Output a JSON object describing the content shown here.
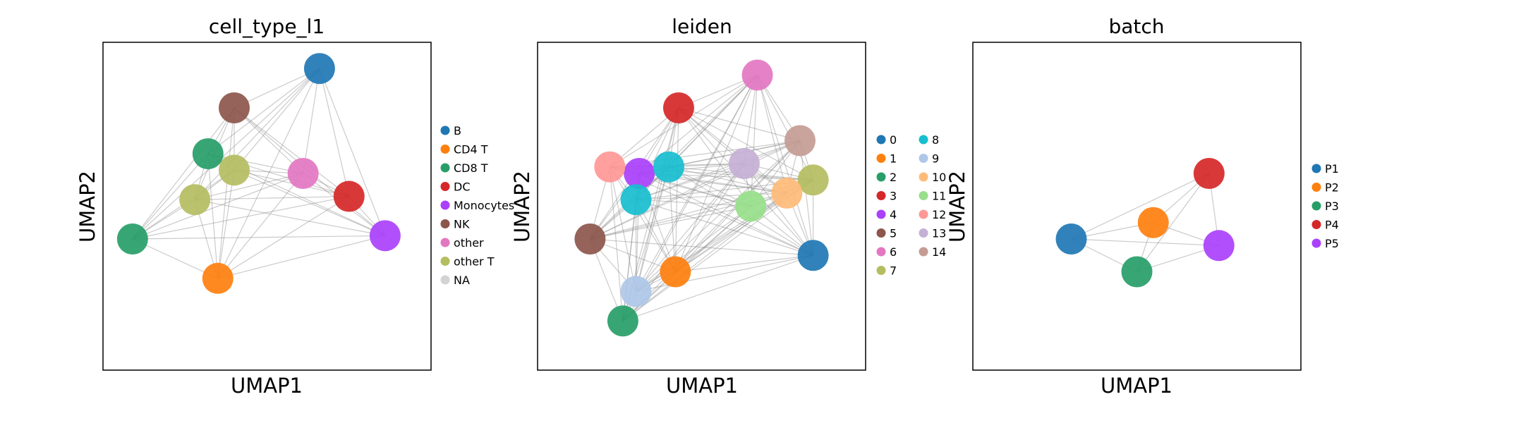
{
  "chart_data": [
    {
      "type": "scatter",
      "title": "cell_type_l1",
      "xlabel": "UMAP1",
      "ylabel": "UMAP2",
      "grid": false,
      "legend_placement": "right",
      "legend": [
        {
          "label": "B",
          "color": "#1f77b4"
        },
        {
          "label": "CD4 T",
          "color": "#ff7f0e"
        },
        {
          "label": "CD8 T",
          "color": "#279e68"
        },
        {
          "label": "DC",
          "color": "#d62728"
        },
        {
          "label": "Monocytes",
          "color": "#aa40fc"
        },
        {
          "label": "NK",
          "color": "#8c564b"
        },
        {
          "label": "other",
          "color": "#e377c2"
        },
        {
          "label": "other T",
          "color": "#b5bd61"
        },
        {
          "label": "NA",
          "color": "#d3d3d3"
        }
      ],
      "clusters": [
        {
          "x": 0.66,
          "y": 0.92,
          "category": "B"
        },
        {
          "x": 0.35,
          "y": 0.28,
          "category": "CD4 T"
        },
        {
          "x": 0.09,
          "y": 0.4,
          "category": "CD8 T"
        },
        {
          "x": 0.32,
          "y": 0.66,
          "category": "CD8 T"
        },
        {
          "x": 0.75,
          "y": 0.53,
          "category": "DC"
        },
        {
          "x": 0.86,
          "y": 0.41,
          "category": "Monocytes"
        },
        {
          "x": 0.4,
          "y": 0.8,
          "category": "NK"
        },
        {
          "x": 0.61,
          "y": 0.6,
          "category": "other"
        },
        {
          "x": 0.28,
          "y": 0.52,
          "category": "other T"
        },
        {
          "x": 0.4,
          "y": 0.61,
          "category": "other T"
        }
      ]
    },
    {
      "type": "scatter",
      "title": "leiden",
      "xlabel": "UMAP1",
      "ylabel": "UMAP2",
      "grid": false,
      "legend_placement": "right",
      "legend": [
        {
          "label": "0",
          "color": "#1f77b4"
        },
        {
          "label": "1",
          "color": "#ff7f0e"
        },
        {
          "label": "2",
          "color": "#279e68"
        },
        {
          "label": "3",
          "color": "#d62728"
        },
        {
          "label": "4",
          "color": "#aa40fc"
        },
        {
          "label": "5",
          "color": "#8c564b"
        },
        {
          "label": "6",
          "color": "#e377c2"
        },
        {
          "label": "7",
          "color": "#b5bd61"
        },
        {
          "label": "8",
          "color": "#17becf"
        },
        {
          "label": "9",
          "color": "#aec7e8"
        },
        {
          "label": "10",
          "color": "#ffbb78"
        },
        {
          "label": "11",
          "color": "#98df8a"
        },
        {
          "label": "12",
          "color": "#ff9896"
        },
        {
          "label": "13",
          "color": "#c5b0d5"
        },
        {
          "label": "14",
          "color": "#c49c94"
        }
      ],
      "clusters": [
        {
          "x": 0.84,
          "y": 0.35,
          "category": "0"
        },
        {
          "x": 0.42,
          "y": 0.3,
          "category": "1"
        },
        {
          "x": 0.26,
          "y": 0.15,
          "category": "2"
        },
        {
          "x": 0.43,
          "y": 0.8,
          "category": "3"
        },
        {
          "x": 0.31,
          "y": 0.6,
          "category": "4"
        },
        {
          "x": 0.16,
          "y": 0.4,
          "category": "5"
        },
        {
          "x": 0.67,
          "y": 0.9,
          "category": "6"
        },
        {
          "x": 0.84,
          "y": 0.58,
          "category": "7"
        },
        {
          "x": 0.3,
          "y": 0.52,
          "category": "8"
        },
        {
          "x": 0.4,
          "y": 0.62,
          "category": "8"
        },
        {
          "x": 0.3,
          "y": 0.24,
          "category": "9"
        },
        {
          "x": 0.76,
          "y": 0.54,
          "category": "10"
        },
        {
          "x": 0.65,
          "y": 0.5,
          "category": "11"
        },
        {
          "x": 0.22,
          "y": 0.62,
          "category": "12"
        },
        {
          "x": 0.63,
          "y": 0.63,
          "category": "13"
        },
        {
          "x": 0.8,
          "y": 0.7,
          "category": "14"
        }
      ]
    },
    {
      "type": "scatter",
      "title": "batch",
      "xlabel": "UMAP1",
      "ylabel": "UMAP2",
      "grid": false,
      "legend_placement": "right",
      "legend": [
        {
          "label": "P1",
          "color": "#1f77b4"
        },
        {
          "label": "P2",
          "color": "#ff7f0e"
        },
        {
          "label": "P3",
          "color": "#279e68"
        },
        {
          "label": "P4",
          "color": "#d62728"
        },
        {
          "label": "P5",
          "color": "#aa40fc"
        }
      ],
      "clusters": [
        {
          "x": 0.55,
          "y": 0.45,
          "category": "P2"
        },
        {
          "x": 0.75,
          "y": 0.38,
          "category": "P5"
        },
        {
          "x": 0.3,
          "y": 0.4,
          "category": "P1"
        },
        {
          "x": 0.5,
          "y": 0.3,
          "category": "P3"
        },
        {
          "x": 0.72,
          "y": 0.6,
          "category": "P4"
        }
      ]
    }
  ]
}
